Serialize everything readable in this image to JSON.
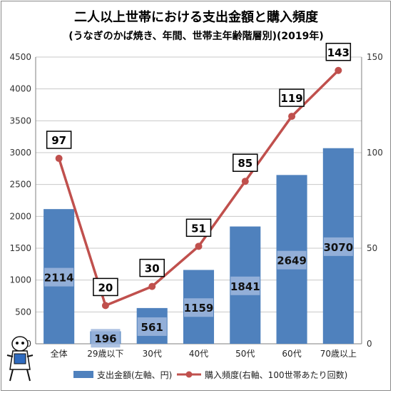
{
  "chart_data": {
    "type": "bar",
    "title": "二人以上世帯における支出金額と購入頻度",
    "subtitle": "(うなぎのかば焼き、年間、世帯主年齢階層別)(2019年)",
    "categories": [
      "全体",
      "29歳以下",
      "30代",
      "40代",
      "50代",
      "60代",
      "70歳以上"
    ],
    "series": [
      {
        "name": "支出金額(左軸、円)",
        "type": "bar",
        "axis": "left",
        "values": [
          2114,
          196,
          561,
          1159,
          1841,
          2649,
          3070
        ],
        "color": "#4f81bd"
      },
      {
        "name": "購入頻度(右軸、100世帯あたり回数)",
        "type": "line",
        "axis": "right",
        "values": [
          97,
          20,
          30,
          51,
          85,
          119,
          143
        ],
        "color": "#c0504d"
      }
    ],
    "ylim_left": [
      0,
      4500
    ],
    "yticks_left": [
      0,
      500,
      1000,
      1500,
      2000,
      2500,
      3000,
      3500,
      4000,
      4500
    ],
    "ylim_right": [
      0,
      150
    ],
    "yticks_right": [
      0,
      50,
      100,
      150
    ],
    "grid": true,
    "legend": "bottom"
  }
}
